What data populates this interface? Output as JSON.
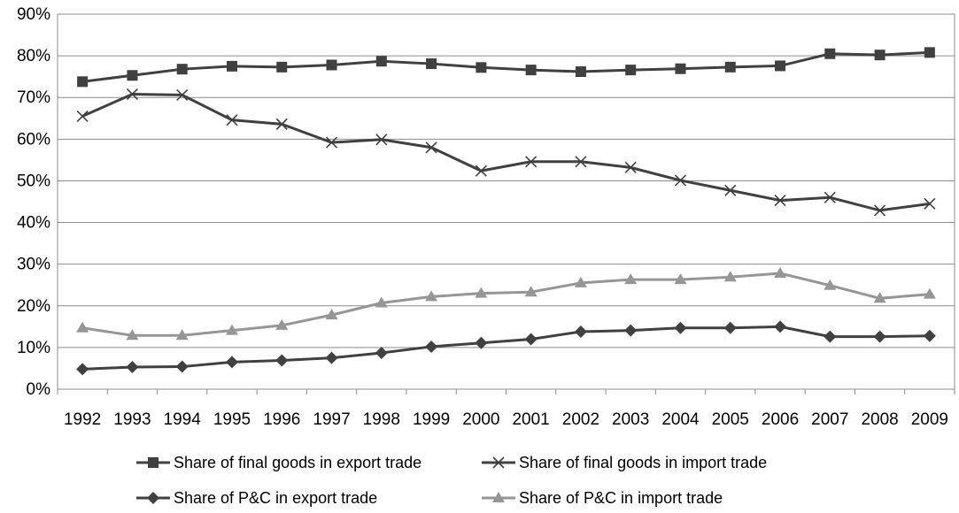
{
  "chart_data": {
    "type": "line",
    "title": "",
    "xlabel": "",
    "ylabel": "",
    "x": [
      "1992",
      "1993",
      "1994",
      "1995",
      "1996",
      "1997",
      "1998",
      "1999",
      "2000",
      "2001",
      "2002",
      "2003",
      "2004",
      "2005",
      "2006",
      "2007",
      "2008",
      "2009"
    ],
    "ylim": [
      0,
      90
    ],
    "yticks": [
      "0%",
      "10%",
      "20%",
      "30%",
      "40%",
      "50%",
      "60%",
      "70%",
      "80%",
      "90%"
    ],
    "grid": "horizontal",
    "legend_position": "bottom",
    "series": [
      {
        "name": "Share of final goods in export trade",
        "marker": "square",
        "color": "#404040",
        "values": [
          73.8,
          75.3,
          76.8,
          77.5,
          77.3,
          77.8,
          78.7,
          78.1,
          77.2,
          76.6,
          76.2,
          76.6,
          76.9,
          77.3,
          77.6,
          80.5,
          80.2,
          80.8
        ]
      },
      {
        "name": "Share of final goods in import trade",
        "marker": "x",
        "color": "#404040",
        "values": [
          65.5,
          70.8,
          70.6,
          64.6,
          63.6,
          59.2,
          59.9,
          58.0,
          52.4,
          54.6,
          54.6,
          53.2,
          50.1,
          47.7,
          45.3,
          46.0,
          42.9,
          44.5
        ]
      },
      {
        "name": "Share of P&C in export trade",
        "marker": "diamond",
        "color": "#404040",
        "values": [
          4.8,
          5.3,
          5.4,
          6.5,
          6.9,
          7.5,
          8.7,
          10.2,
          11.1,
          12.0,
          13.8,
          14.1,
          14.7,
          14.7,
          15.0,
          12.6,
          12.6,
          12.8
        ]
      },
      {
        "name": "Share of P&C in import trade",
        "marker": "triangle",
        "color": "#969696",
        "values": [
          14.7,
          12.9,
          12.9,
          14.1,
          15.3,
          17.8,
          20.7,
          22.2,
          23.0,
          23.3,
          25.5,
          26.3,
          26.3,
          26.9,
          27.8,
          24.9,
          21.8,
          22.8
        ]
      }
    ]
  }
}
